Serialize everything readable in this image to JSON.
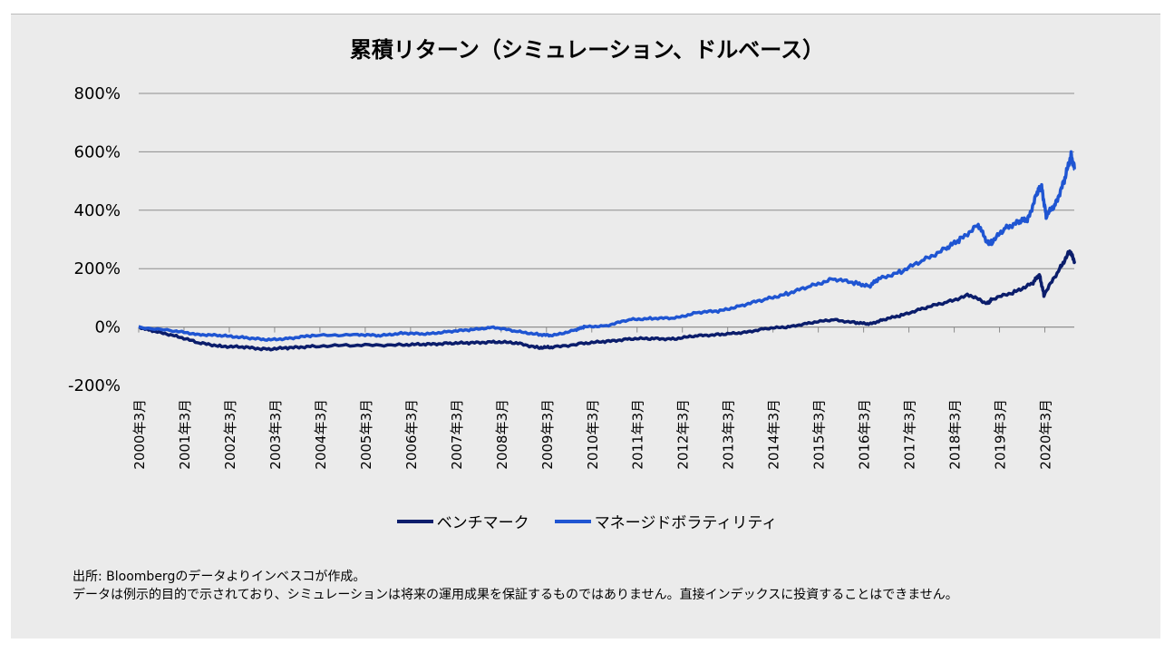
{
  "chart_data": {
    "type": "line",
    "title": "累積リターン（シミュレーション、ドルベース）",
    "xlabel": "",
    "ylabel": "",
    "ylim": [
      -200,
      800
    ],
    "yticks": [
      "800%",
      "600%",
      "400%",
      "200%",
      "0%",
      "-200%"
    ],
    "ytick_values": [
      800,
      600,
      400,
      200,
      0,
      -200
    ],
    "xlim": [
      2000.17,
      2020.85
    ],
    "xticks": [
      "2000年3月",
      "2001年3月",
      "2002年3月",
      "2003年3月",
      "2004年3月",
      "2005年3月",
      "2006年3月",
      "2007年3月",
      "2008年3月",
      "2009年3月",
      "2010年3月",
      "2011年3月",
      "2012年3月",
      "2013年3月",
      "2014年3月",
      "2015年3月",
      "2016年3月",
      "2017年3月",
      "2018年3月",
      "2019年3月",
      "2020年3月"
    ],
    "grid": true,
    "legend_position": "bottom",
    "series": [
      {
        "name": "ベンチマーク",
        "color": "#0b1d6b",
        "x": [
          2000.17,
          2000.5,
          2001,
          2001.5,
          2002,
          2002.5,
          2003,
          2003.5,
          2004,
          2005,
          2006,
          2006.5,
          2007,
          2007.5,
          2008,
          2008.5,
          2009,
          2009.3,
          2010,
          2010.5,
          2011,
          2011.5,
          2012,
          2012.5,
          2013,
          2013.5,
          2014,
          2014.5,
          2015,
          2015.5,
          2016,
          2016.3,
          2016.6,
          2017,
          2017.5,
          2018,
          2018.5,
          2018.9,
          2019,
          2019.5,
          2019.9,
          2020.05,
          2020.15,
          2020.5,
          2020.72,
          2020.83
        ],
        "y": [
          0,
          -15,
          -30,
          -55,
          -65,
          -70,
          -75,
          -72,
          -65,
          -63,
          -60,
          -60,
          -55,
          -55,
          -50,
          -55,
          -70,
          -70,
          -55,
          -50,
          -40,
          -40,
          -40,
          -30,
          -25,
          -20,
          -5,
          0,
          15,
          25,
          15,
          10,
          25,
          40,
          65,
          85,
          110,
          80,
          95,
          120,
          150,
          180,
          110,
          200,
          260,
          225
        ]
      },
      {
        "name": "マネージドボラティリティ",
        "color": "#1f55d2",
        "x": [
          2000.17,
          2001,
          2001.5,
          2002,
          2002.5,
          2003,
          2003.5,
          2004,
          2005,
          2005.5,
          2006,
          2006.5,
          2007,
          2007.5,
          2008,
          2008.5,
          2009,
          2009.3,
          2009.8,
          2010,
          2010.5,
          2011,
          2011.5,
          2012,
          2012.5,
          2013,
          2013.5,
          2014,
          2014.5,
          2015,
          2015.5,
          2016,
          2016.3,
          2016.5,
          2017,
          2017.5,
          2018,
          2018.3,
          2018.7,
          2018.9,
          2019,
          2019.3,
          2019.6,
          2019.8,
          2020,
          2020.1,
          2020.2,
          2020.4,
          2020.6,
          2020.75,
          2020.83
        ],
        "y": [
          0,
          -15,
          -25,
          -30,
          -35,
          -45,
          -38,
          -30,
          -25,
          -30,
          -20,
          -25,
          -15,
          -10,
          0,
          -15,
          -25,
          -30,
          -10,
          0,
          5,
          25,
          30,
          30,
          50,
          55,
          75,
          95,
          115,
          140,
          165,
          150,
          140,
          165,
          190,
          230,
          270,
          300,
          350,
          290,
          290,
          340,
          360,
          370,
          460,
          480,
          380,
          420,
          500,
          590,
          540
        ]
      }
    ]
  },
  "footnotes": [
    "出所: Bloombergのデータよりインベスコが作成。",
    "データは例示的目的で示されており、シミュレーションは将来の運用成果を保証するものではありません。直接インデックスに投資することはできません。"
  ]
}
